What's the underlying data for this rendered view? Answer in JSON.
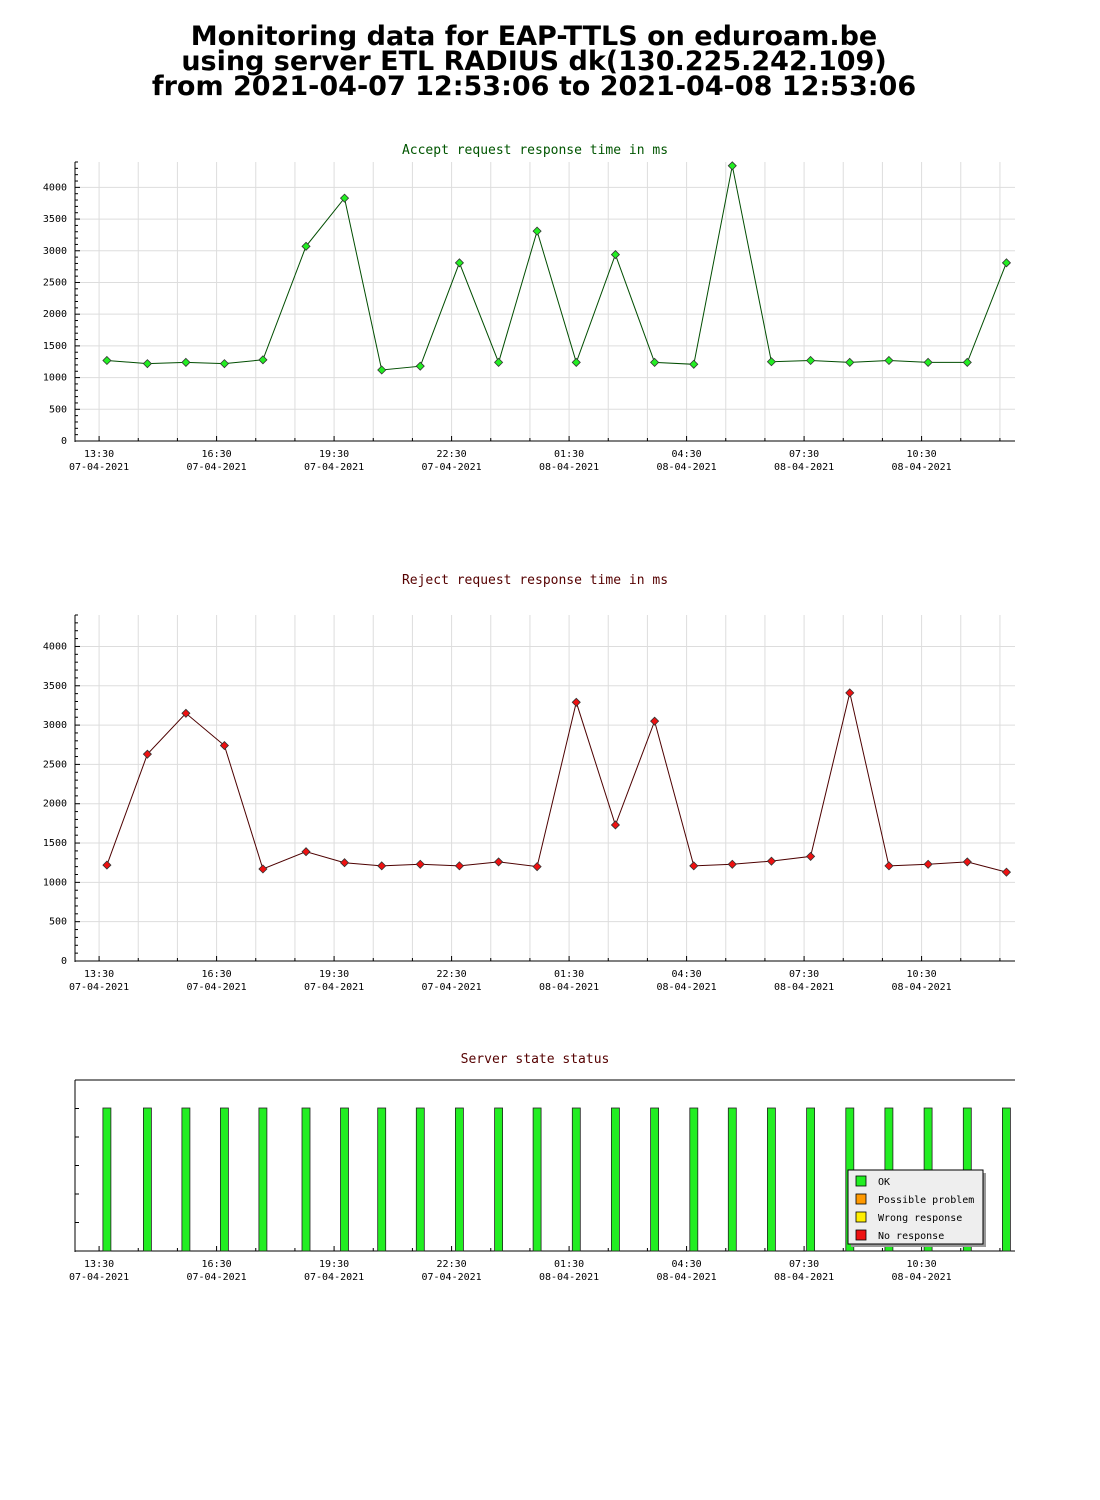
{
  "header": {
    "line1": "Monitoring data for EAP-TTLS on eduroam.be",
    "line2": "using server ETL RADIUS dk(130.225.242.109)",
    "line3": "from 2021-04-07 12:53:06 to 2021-04-08 12:53:06"
  },
  "colors": {
    "accept_line": "#004d00",
    "accept_marker": "#22ee22",
    "reject_line": "#4d0000",
    "reject_marker": "#ee1111",
    "ok": "#22ee22",
    "possible_problem": "#ff9900",
    "wrong_response": "#ffee00",
    "no_response": "#ee1111",
    "grid": "#dddddd"
  },
  "chart_data": [
    {
      "type": "line",
      "title": "Accept request response time in ms",
      "x_ticks": [
        {
          "time": "13:30",
          "date": "07-04-2021"
        },
        {
          "time": "16:30",
          "date": "07-04-2021"
        },
        {
          "time": "19:30",
          "date": "07-04-2021"
        },
        {
          "time": "22:30",
          "date": "07-04-2021"
        },
        {
          "time": "01:30",
          "date": "08-04-2021"
        },
        {
          "time": "04:30",
          "date": "08-04-2021"
        },
        {
          "time": "07:30",
          "date": "08-04-2021"
        },
        {
          "time": "10:30",
          "date": "08-04-2021"
        }
      ],
      "y_ticks": [
        0,
        500,
        1000,
        1500,
        2000,
        2500,
        3000,
        3500,
        4000
      ],
      "ylim": [
        0,
        4400
      ],
      "x": [
        "2021-04-07 13:42",
        "2021-04-07 14:44",
        "2021-04-07 15:43",
        "2021-04-07 16:42",
        "2021-04-07 17:41",
        "2021-04-07 18:47",
        "2021-04-07 19:46",
        "2021-04-07 20:43",
        "2021-04-07 21:42",
        "2021-04-07 22:42",
        "2021-04-07 23:42",
        "2021-04-08 00:41",
        "2021-04-08 01:41",
        "2021-04-08 02:41",
        "2021-04-08 03:41",
        "2021-04-08 04:41",
        "2021-04-08 05:40",
        "2021-04-08 06:40",
        "2021-04-08 07:40",
        "2021-04-08 08:40",
        "2021-04-08 09:40",
        "2021-04-08 10:40",
        "2021-04-08 11:40",
        "2021-04-08 12:40"
      ],
      "values": [
        1270,
        1220,
        1240,
        1220,
        1280,
        3070,
        3830,
        1120,
        1180,
        2810,
        1240,
        3310,
        1240,
        2940,
        1240,
        1210,
        4340,
        1250,
        1270,
        1240,
        1270,
        1240,
        1240,
        2810
      ]
    },
    {
      "type": "line",
      "title": "Reject request response time in ms",
      "x_ticks": [
        {
          "time": "13:30",
          "date": "07-04-2021"
        },
        {
          "time": "16:30",
          "date": "07-04-2021"
        },
        {
          "time": "19:30",
          "date": "07-04-2021"
        },
        {
          "time": "22:30",
          "date": "07-04-2021"
        },
        {
          "time": "01:30",
          "date": "08-04-2021"
        },
        {
          "time": "04:30",
          "date": "08-04-2021"
        },
        {
          "time": "07:30",
          "date": "08-04-2021"
        },
        {
          "time": "10:30",
          "date": "08-04-2021"
        }
      ],
      "y_ticks": [
        0,
        500,
        1000,
        1500,
        2000,
        2500,
        3000,
        3500,
        4000
      ],
      "ylim": [
        0,
        4400
      ],
      "x": [
        "2021-04-07 13:42",
        "2021-04-07 14:44",
        "2021-04-07 15:43",
        "2021-04-07 16:42",
        "2021-04-07 17:41",
        "2021-04-07 18:47",
        "2021-04-07 19:46",
        "2021-04-07 20:43",
        "2021-04-07 21:42",
        "2021-04-07 22:42",
        "2021-04-07 23:42",
        "2021-04-08 00:41",
        "2021-04-08 01:41",
        "2021-04-08 02:41",
        "2021-04-08 03:41",
        "2021-04-08 04:41",
        "2021-04-08 05:40",
        "2021-04-08 06:40",
        "2021-04-08 07:40",
        "2021-04-08 08:40",
        "2021-04-08 09:40",
        "2021-04-08 10:40",
        "2021-04-08 11:40",
        "2021-04-08 12:40"
      ],
      "values": [
        1220,
        2630,
        3150,
        2740,
        1170,
        1390,
        1250,
        1210,
        1230,
        1210,
        1260,
        1200,
        3290,
        1730,
        3050,
        1210,
        1230,
        1270,
        1330,
        3410,
        1210,
        1230,
        1260,
        1130
      ]
    },
    {
      "type": "bar",
      "title": "Server state status",
      "x_ticks": [
        {
          "time": "13:30",
          "date": "07-04-2021"
        },
        {
          "time": "16:30",
          "date": "07-04-2021"
        },
        {
          "time": "19:30",
          "date": "07-04-2021"
        },
        {
          "time": "22:30",
          "date": "07-04-2021"
        },
        {
          "time": "01:30",
          "date": "08-04-2021"
        },
        {
          "time": "04:30",
          "date": "08-04-2021"
        },
        {
          "time": "07:30",
          "date": "08-04-2021"
        },
        {
          "time": "10:30",
          "date": "08-04-2021"
        }
      ],
      "x": [
        "2021-04-07 13:42",
        "2021-04-07 14:44",
        "2021-04-07 15:43",
        "2021-04-07 16:42",
        "2021-04-07 17:41",
        "2021-04-07 18:47",
        "2021-04-07 19:46",
        "2021-04-07 20:43",
        "2021-04-07 21:42",
        "2021-04-07 22:42",
        "2021-04-07 23:42",
        "2021-04-08 00:41",
        "2021-04-08 01:41",
        "2021-04-08 02:41",
        "2021-04-08 03:41",
        "2021-04-08 04:41",
        "2021-04-08 05:40",
        "2021-04-08 06:40",
        "2021-04-08 07:40",
        "2021-04-08 08:40",
        "2021-04-08 09:40",
        "2021-04-08 10:40",
        "2021-04-08 11:40",
        "2021-04-08 12:40"
      ],
      "states": [
        "OK",
        "OK",
        "OK",
        "OK",
        "OK",
        "OK",
        "OK",
        "OK",
        "OK",
        "OK",
        "OK",
        "OK",
        "OK",
        "OK",
        "OK",
        "OK",
        "OK",
        "OK",
        "OK",
        "OK",
        "OK",
        "OK",
        "OK",
        "OK"
      ],
      "legend": [
        "OK",
        "Possible problem",
        "Wrong response",
        "No response"
      ],
      "legend_position": "bottom-right"
    }
  ]
}
